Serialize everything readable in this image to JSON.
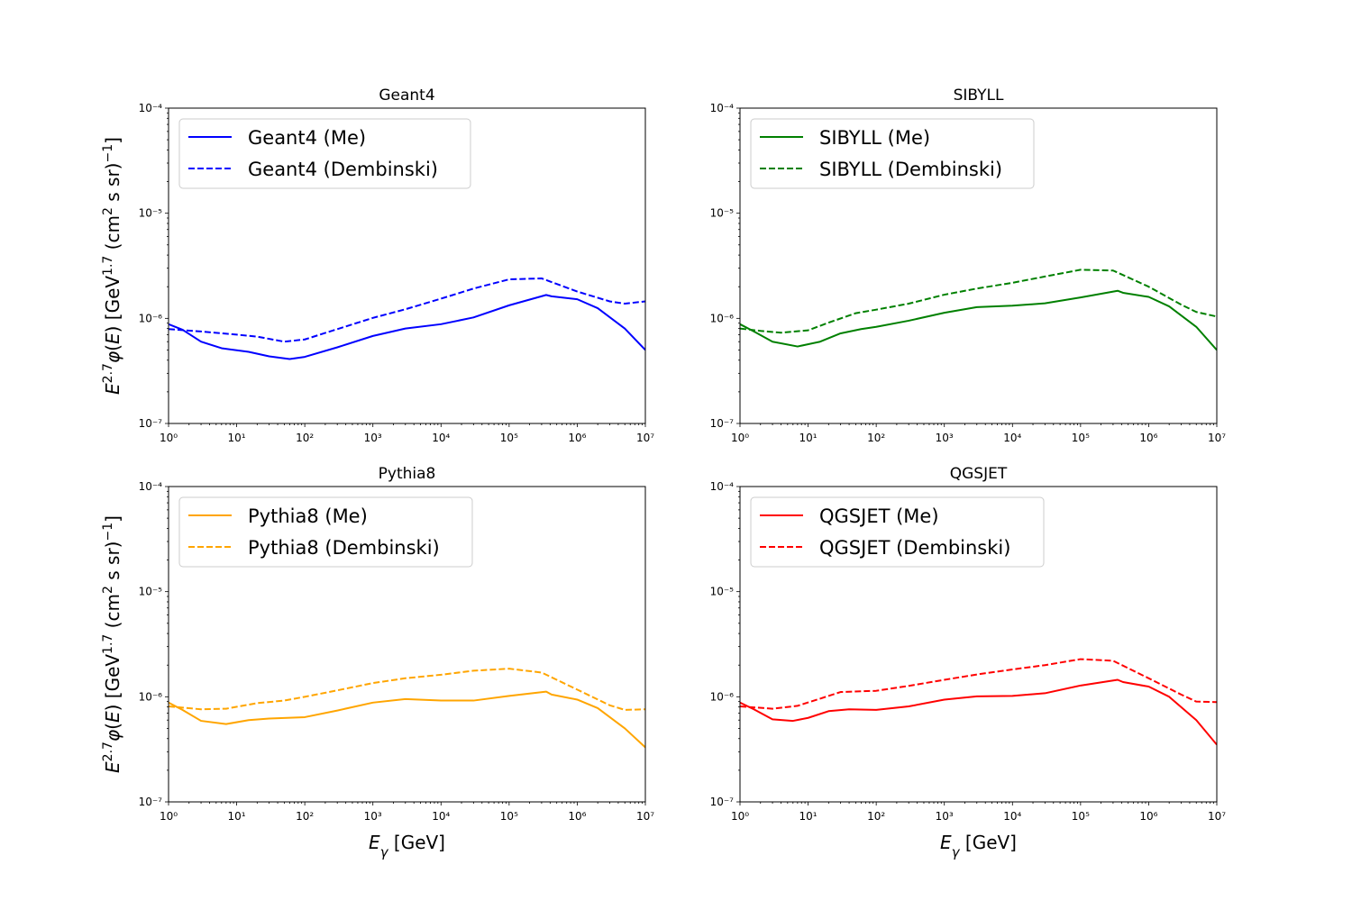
{
  "chart_data": [
    {
      "type": "line",
      "title": "Geant4",
      "xlabel": "",
      "ylabel": "E^{2.7} φ(E) [GeV^{1.7} (cm^2 s sr)^{-1}]",
      "xscale": "log",
      "yscale": "log",
      "xlim": [
        1,
        10000000
      ],
      "ylim": [
        1e-07,
        0.0001
      ],
      "legend_position": "upper-left",
      "grid": false,
      "series": [
        {
          "name": "Geant4 (Me)",
          "color": "#0000ff",
          "style": "solid",
          "x": [
            1,
            1.6,
            3,
            6,
            15,
            30,
            60,
            100,
            300,
            1000,
            3000,
            10000,
            30000,
            100000,
            350000,
            420000,
            1000000,
            2000000,
            5000000,
            10000000
          ],
          "y": [
            8.8e-07,
            7.8e-07,
            6e-07,
            5.2e-07,
            4.8e-07,
            4.35e-07,
            4.1e-07,
            4.3e-07,
            5.3e-07,
            6.8e-07,
            8e-07,
            8.8e-07,
            1.02e-06,
            1.33e-06,
            1.67e-06,
            1.62e-06,
            1.52e-06,
            1.25e-06,
            8e-07,
            5e-07
          ]
        },
        {
          "name": "Geant4 (Dembinski)",
          "color": "#0000ff",
          "style": "dashed",
          "x": [
            1,
            3,
            10,
            20,
            50,
            100,
            300,
            1000,
            3000,
            10000,
            30000,
            100000,
            300000,
            1000000,
            3000000,
            5000000,
            10000000
          ],
          "y": [
            7.9e-07,
            7.5e-07,
            7e-07,
            6.7e-07,
            6e-07,
            6.3e-07,
            7.9e-07,
            1.01e-06,
            1.22e-06,
            1.54e-06,
            1.92e-06,
            2.35e-06,
            2.4e-06,
            1.8e-06,
            1.45e-06,
            1.38e-06,
            1.45e-06
          ]
        }
      ]
    },
    {
      "type": "line",
      "title": "SIBYLL",
      "xlabel": "",
      "ylabel": "",
      "xscale": "log",
      "yscale": "log",
      "xlim": [
        1,
        10000000
      ],
      "ylim": [
        1e-07,
        0.0001
      ],
      "legend_position": "upper-left",
      "grid": false,
      "series": [
        {
          "name": "SIBYLL (Me)",
          "color": "#008000",
          "style": "solid",
          "x": [
            1,
            1.6,
            3,
            7,
            15,
            30,
            60,
            100,
            300,
            1000,
            3000,
            10000,
            30000,
            100000,
            350000,
            420000,
            1000000,
            2000000,
            5000000,
            10000000
          ],
          "y": [
            8.8e-07,
            7.5e-07,
            6e-07,
            5.4e-07,
            6e-07,
            7.2e-07,
            7.9e-07,
            8.3e-07,
            9.5e-07,
            1.13e-06,
            1.28e-06,
            1.32e-06,
            1.39e-06,
            1.58e-06,
            1.83e-06,
            1.75e-06,
            1.6e-06,
            1.3e-06,
            8.3e-07,
            5e-07
          ]
        },
        {
          "name": "SIBYLL (Dembinski)",
          "color": "#008000",
          "style": "dashed",
          "x": [
            1,
            2,
            4,
            10,
            20,
            50,
            100,
            300,
            1000,
            3000,
            10000,
            30000,
            100000,
            300000,
            1000000,
            3000000,
            5000000,
            10000000
          ],
          "y": [
            8e-07,
            7.6e-07,
            7.3e-07,
            7.7e-07,
            9.1e-07,
            1.12e-06,
            1.21e-06,
            1.38e-06,
            1.68e-06,
            1.92e-06,
            2.18e-06,
            2.5e-06,
            2.9e-06,
            2.85e-06,
            2e-06,
            1.35e-06,
            1.15e-06,
            1.04e-06
          ]
        }
      ]
    },
    {
      "type": "line",
      "title": "Pythia8",
      "xlabel": "E_γ [GeV]",
      "ylabel": "E^{2.7} φ(E) [GeV^{1.7} (cm^2 s sr)^{-1}]",
      "xscale": "log",
      "yscale": "log",
      "xlim": [
        1,
        10000000
      ],
      "ylim": [
        1e-07,
        0.0001
      ],
      "legend_position": "upper-left",
      "grid": false,
      "series": [
        {
          "name": "Pythia8 (Me)",
          "color": "#ffa500",
          "style": "solid",
          "x": [
            1,
            1.6,
            3,
            7,
            15,
            30,
            100,
            300,
            1000,
            3000,
            10000,
            30000,
            100000,
            350000,
            420000,
            1000000,
            2000000,
            5000000,
            10000000
          ],
          "y": [
            8.8e-07,
            7.5e-07,
            5.9e-07,
            5.5e-07,
            6e-07,
            6.2e-07,
            6.4e-07,
            7.4e-07,
            8.8e-07,
            9.5e-07,
            9.2e-07,
            9.2e-07,
            1.02e-06,
            1.12e-06,
            1.05e-06,
            9.4e-07,
            7.8e-07,
            5e-07,
            3.3e-07
          ]
        },
        {
          "name": "Pythia8 (Dembinski)",
          "color": "#ffa500",
          "style": "dashed",
          "x": [
            1,
            3,
            7,
            20,
            50,
            100,
            300,
            1000,
            3000,
            10000,
            30000,
            100000,
            300000,
            1000000,
            3000000,
            5000000,
            10000000
          ],
          "y": [
            8.1e-07,
            7.6e-07,
            7.7e-07,
            8.7e-07,
            9.2e-07,
            1e-06,
            1.15e-06,
            1.35e-06,
            1.5e-06,
            1.62e-06,
            1.77e-06,
            1.85e-06,
            1.7e-06,
            1.17e-06,
            8.3e-07,
            7.5e-07,
            7.6e-07
          ]
        }
      ]
    },
    {
      "type": "line",
      "title": "QGSJET",
      "xlabel": "E_γ [GeV]",
      "ylabel": "",
      "xscale": "log",
      "yscale": "log",
      "xlim": [
        1,
        10000000
      ],
      "ylim": [
        1e-07,
        0.0001
      ],
      "legend_position": "upper-left",
      "grid": false,
      "series": [
        {
          "name": "QGSJET (Me)",
          "color": "#ff0000",
          "style": "solid",
          "x": [
            1,
            1.6,
            3,
            6,
            10,
            20,
            40,
            100,
            300,
            1000,
            3000,
            10000,
            30000,
            100000,
            350000,
            420000,
            1000000,
            2000000,
            5000000,
            10000000
          ],
          "y": [
            8.8e-07,
            7.6e-07,
            6.1e-07,
            5.9e-07,
            6.3e-07,
            7.3e-07,
            7.6e-07,
            7.5e-07,
            8.1e-07,
            9.4e-07,
            1.01e-06,
            1.02e-06,
            1.08e-06,
            1.28e-06,
            1.45e-06,
            1.38e-06,
            1.25e-06,
            1e-06,
            6e-07,
            3.5e-07
          ]
        },
        {
          "name": "QGSJET (Dembinski)",
          "color": "#ff0000",
          "style": "dashed",
          "x": [
            1,
            3,
            7,
            15,
            30,
            100,
            300,
            1000,
            3000,
            10000,
            30000,
            100000,
            300000,
            1000000,
            3000000,
            5000000,
            10000000
          ],
          "y": [
            8.1e-07,
            7.7e-07,
            8.2e-07,
            9.6e-07,
            1.11e-06,
            1.14e-06,
            1.27e-06,
            1.45e-06,
            1.63e-06,
            1.82e-06,
            2e-06,
            2.28e-06,
            2.2e-06,
            1.5e-06,
            1.05e-06,
            9e-07,
            8.9e-07
          ]
        }
      ]
    }
  ]
}
